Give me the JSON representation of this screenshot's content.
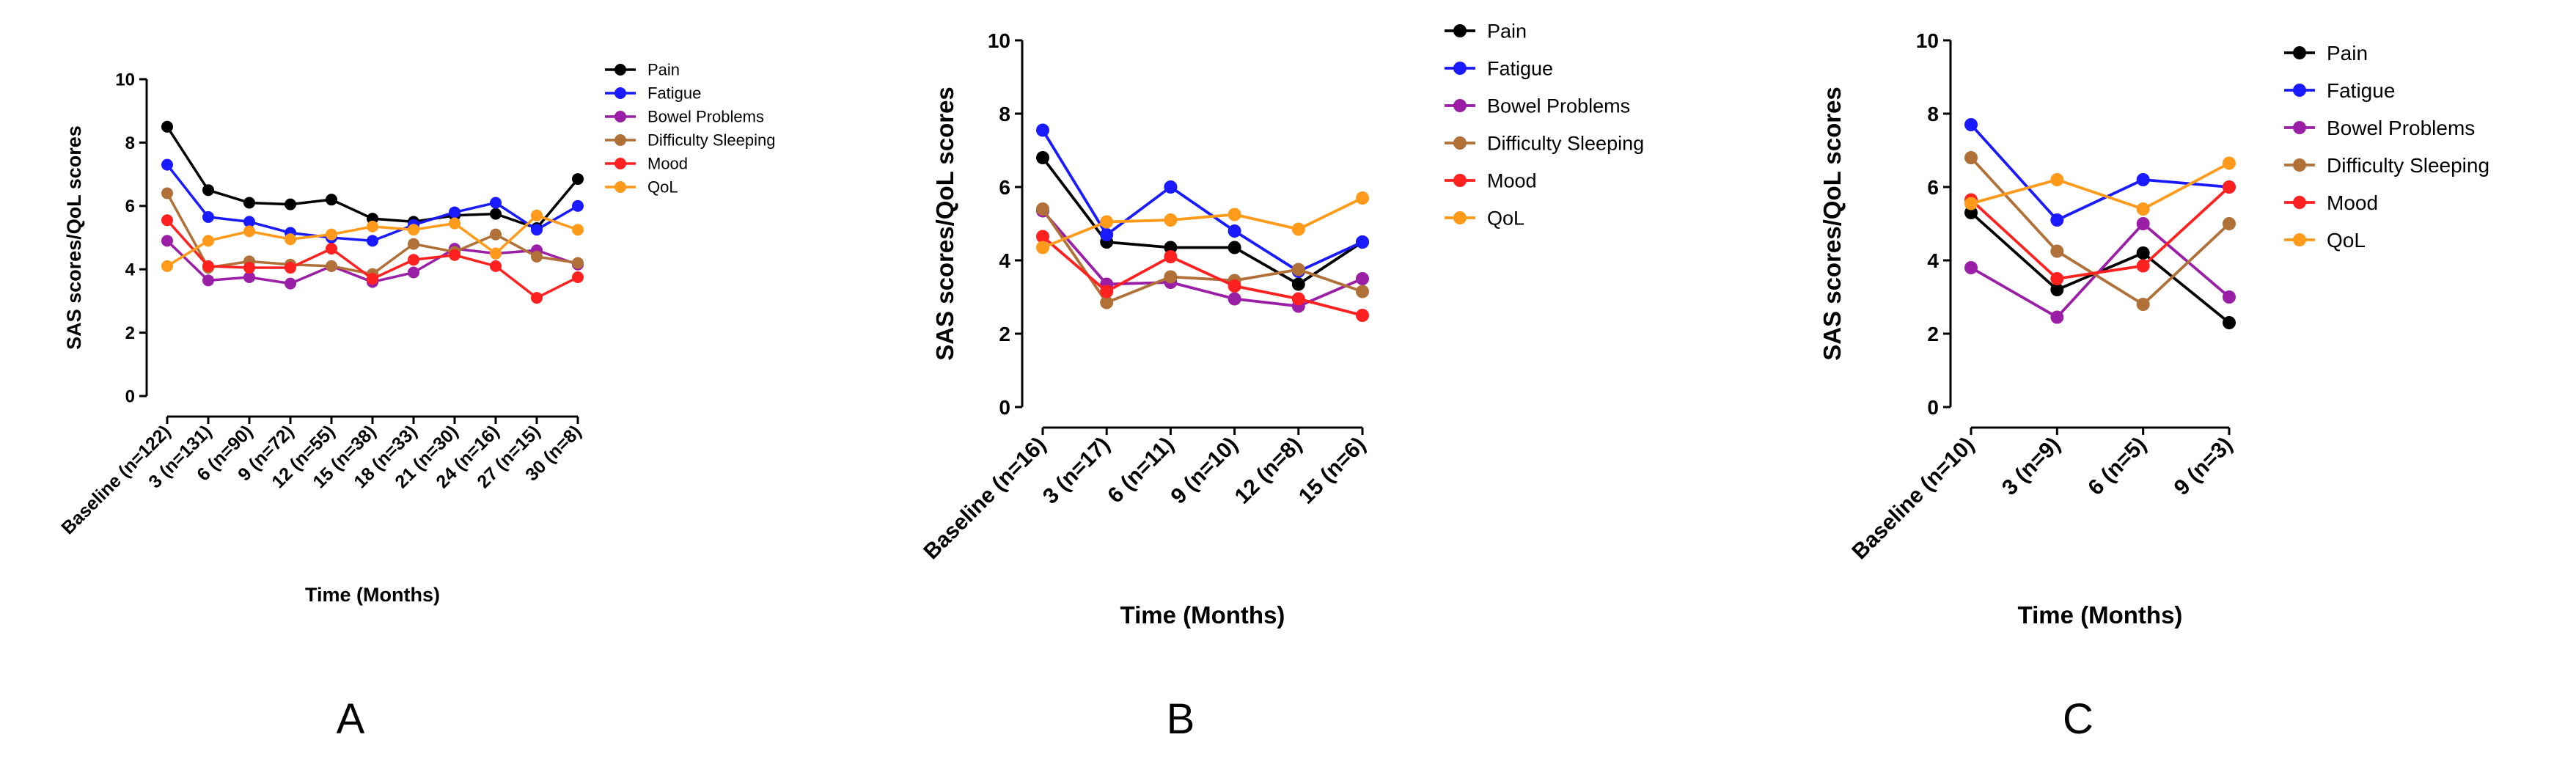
{
  "chart_data": [
    {
      "type": "line",
      "panel_label": "A",
      "xlabel": "Time (Months)",
      "ylabel": "SAS scores/QoL scores",
      "ylim": [
        0,
        10
      ],
      "yticks": [
        "0",
        "2",
        "4",
        "6",
        "8",
        "10"
      ],
      "categories": [
        "Baseline (n=122)",
        "3 (n=131)",
        "6 (n=90)",
        "9 (n=72)",
        "12 (n=55)",
        "15 (n=38)",
        "18 (n=33)",
        "21 (n=30)",
        "24 (n=16)",
        "27 (n=15)",
        "30 (n=8)"
      ],
      "legend_position": "right",
      "series": [
        {
          "name": "Pain",
          "color": "#000000",
          "values": [
            8.5,
            6.5,
            6.1,
            6.05,
            6.2,
            5.6,
            5.5,
            5.7,
            5.75,
            5.3,
            6.85
          ]
        },
        {
          "name": "Fatigue",
          "color": "#1a1aff",
          "values": [
            7.3,
            5.65,
            5.5,
            5.15,
            5.0,
            4.9,
            5.4,
            5.8,
            6.1,
            5.25,
            6.0
          ]
        },
        {
          "name": "Bowel Problems",
          "color": "#9b1fa6",
          "values": [
            4.9,
            3.65,
            3.75,
            3.55,
            4.1,
            3.6,
            3.9,
            4.65,
            4.5,
            4.6,
            4.15
          ]
        },
        {
          "name": "Difficulty Sleeping",
          "color": "#b07038",
          "values": [
            6.4,
            4.05,
            4.25,
            4.15,
            4.1,
            3.85,
            4.8,
            4.55,
            5.1,
            4.4,
            4.2
          ]
        },
        {
          "name": "Mood",
          "color": "#ff2020",
          "values": [
            5.55,
            4.1,
            4.05,
            4.05,
            4.65,
            3.7,
            4.3,
            4.45,
            4.1,
            3.1,
            3.75
          ]
        },
        {
          "name": "QoL",
          "color": "#ff9a1a",
          "values": [
            4.1,
            4.9,
            5.2,
            4.95,
            5.1,
            5.35,
            5.25,
            5.45,
            4.5,
            5.7,
            5.25
          ]
        }
      ]
    },
    {
      "type": "line",
      "panel_label": "B",
      "xlabel": "Time (Months)",
      "ylabel": "SAS scores/QoL scores",
      "ylim": [
        0,
        10
      ],
      "yticks": [
        "0",
        "2",
        "4",
        "6",
        "8",
        "10"
      ],
      "categories": [
        "Baseline (n=16)",
        "3 (n=17)",
        "6 (n=11)",
        "9 (n=10)",
        "12 (n=8)",
        "15 (n=6)"
      ],
      "legend_position": "right",
      "series": [
        {
          "name": "Pain",
          "color": "#000000",
          "values": [
            6.8,
            4.5,
            4.35,
            4.35,
            3.35,
            4.5
          ]
        },
        {
          "name": "Fatigue",
          "color": "#1a1aff",
          "values": [
            7.55,
            4.7,
            6.0,
            4.8,
            3.7,
            4.5
          ]
        },
        {
          "name": "Bowel Problems",
          "color": "#9b1fa6",
          "values": [
            5.35,
            3.35,
            3.4,
            2.95,
            2.75,
            3.5
          ]
        },
        {
          "name": "Difficulty Sleeping",
          "color": "#b07038",
          "values": [
            5.4,
            2.85,
            3.55,
            3.45,
            3.75,
            3.15
          ]
        },
        {
          "name": "Mood",
          "color": "#ff2020",
          "values": [
            4.65,
            3.15,
            4.1,
            3.3,
            2.95,
            2.5
          ]
        },
        {
          "name": "QoL",
          "color": "#ff9a1a",
          "values": [
            4.35,
            5.05,
            5.1,
            5.25,
            4.85,
            5.7
          ]
        }
      ]
    },
    {
      "type": "line",
      "panel_label": "C",
      "xlabel": "Time (Months)",
      "ylabel": "SAS scores/QoL scores",
      "ylim": [
        0,
        10
      ],
      "yticks": [
        "0",
        "2",
        "4",
        "6",
        "8",
        "10"
      ],
      "categories": [
        "Baseline (n=10)",
        "3 (n=9)",
        "6 (n=5)",
        "9 (n=3)"
      ],
      "legend_position": "right",
      "series": [
        {
          "name": "Pain",
          "color": "#000000",
          "values": [
            5.3,
            3.2,
            4.2,
            2.3
          ]
        },
        {
          "name": "Fatigue",
          "color": "#1a1aff",
          "values": [
            7.7,
            5.1,
            6.2,
            6.0
          ]
        },
        {
          "name": "Bowel Problems",
          "color": "#9b1fa6",
          "values": [
            3.8,
            2.45,
            5.0,
            3.0
          ]
        },
        {
          "name": "Difficulty Sleeping",
          "color": "#b07038",
          "values": [
            6.8,
            4.25,
            2.8,
            5.0
          ]
        },
        {
          "name": "Mood",
          "color": "#ff2020",
          "values": [
            5.65,
            3.5,
            3.85,
            6.0
          ]
        },
        {
          "name": "QoL",
          "color": "#ff9a1a",
          "values": [
            5.55,
            6.2,
            5.4,
            6.65
          ]
        }
      ]
    }
  ]
}
